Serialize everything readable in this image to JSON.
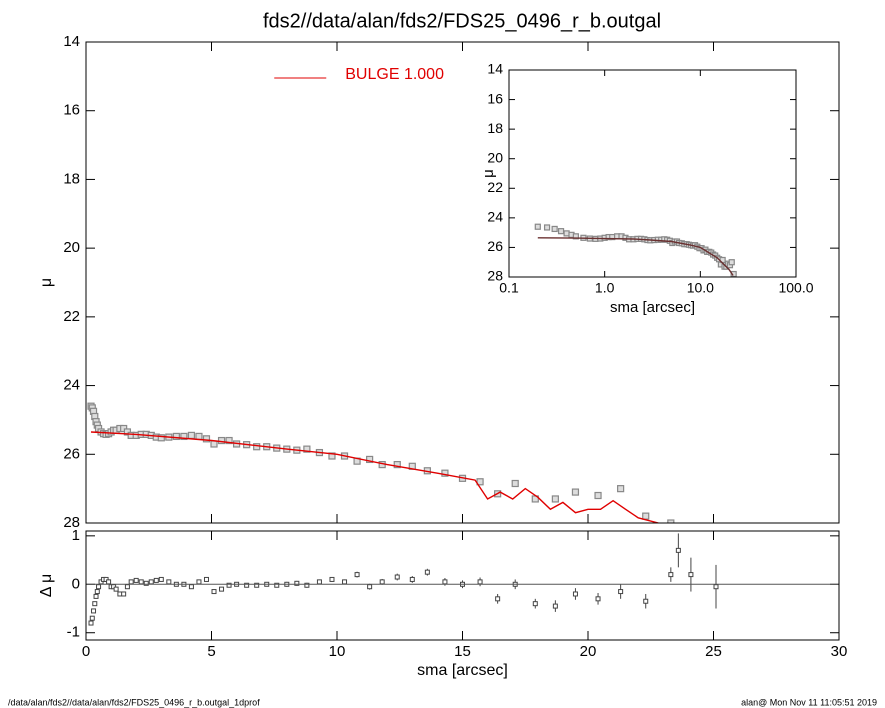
{
  "chart_data": [
    {
      "type": "scatter",
      "title": "fds2//data/alan/fds2/FDS25_0496_r_b.outgal",
      "y_label": "μ",
      "xlim": [
        0,
        30
      ],
      "ylim": [
        28,
        14
      ],
      "yticks": [
        14,
        16,
        18,
        20,
        22,
        24,
        26,
        28
      ],
      "legend": "top-center",
      "series": [
        {
          "color": "#888888",
          "style": "square",
          "x": [
            0.2,
            0.25,
            0.3,
            0.35,
            0.4,
            0.45,
            0.5,
            0.6,
            0.7,
            0.8,
            0.9,
            1.0,
            1.1,
            1.2,
            1.35,
            1.5,
            1.65,
            1.8,
            2.0,
            2.2,
            2.4,
            2.6,
            2.8,
            3.0,
            3.3,
            3.6,
            3.9,
            4.2,
            4.5,
            4.8,
            5.1,
            5.4,
            5.7,
            6.0,
            6.4,
            6.8,
            7.2,
            7.6,
            8.0,
            8.4,
            8.8,
            9.3,
            9.8,
            10.3,
            10.8,
            11.3,
            11.8,
            12.4,
            13.0,
            13.6,
            14.3,
            15.0,
            15.7,
            16.4,
            17.1,
            17.9,
            18.7,
            19.5,
            20.4,
            21.3,
            22.3,
            23.3
          ],
          "values": [
            24.6,
            24.65,
            24.75,
            24.9,
            25.05,
            25.15,
            25.25,
            25.35,
            25.4,
            25.42,
            25.4,
            25.35,
            25.3,
            25.3,
            25.25,
            25.25,
            25.35,
            25.45,
            25.45,
            25.42,
            25.42,
            25.45,
            25.5,
            25.52,
            25.5,
            25.48,
            25.48,
            25.45,
            25.48,
            25.55,
            25.7,
            25.6,
            25.6,
            25.7,
            25.72,
            25.78,
            25.78,
            25.82,
            25.85,
            25.88,
            25.85,
            25.95,
            26.05,
            26.05,
            26.2,
            26.15,
            26.3,
            26.3,
            26.35,
            26.48,
            26.55,
            26.7,
            26.8,
            27.15,
            26.85,
            27.3,
            27.3,
            27.1,
            27.2,
            27.0,
            27.8,
            28.0
          ]
        },
        {
          "name": "BULGE  1.000",
          "color": "#e00000",
          "style": "line",
          "x": [
            0.2,
            2,
            5,
            8,
            10,
            12,
            14,
            15.5,
            16,
            16.5,
            17,
            17.5,
            18,
            18.5,
            19,
            19.5,
            20,
            20.5,
            21,
            21.5,
            22,
            22.8
          ],
          "values": [
            25.35,
            25.42,
            25.6,
            25.85,
            26.0,
            26.3,
            26.55,
            26.75,
            27.3,
            27.1,
            27.3,
            27.0,
            27.25,
            27.6,
            27.4,
            27.7,
            27.6,
            27.6,
            27.35,
            27.6,
            27.85,
            28.0
          ]
        }
      ]
    },
    {
      "type": "errorbar",
      "x_label": "sma [arcsec]",
      "y_label": "Δ μ",
      "xlim": [
        0,
        30
      ],
      "xticks": [
        0,
        5,
        10,
        15,
        20,
        25,
        30
      ],
      "ylim": [
        -1.15,
        1.1
      ],
      "yticks": [
        -1,
        0,
        1
      ],
      "series": [
        {
          "color": "#444444",
          "x": [
            0.2,
            0.25,
            0.3,
            0.35,
            0.4,
            0.45,
            0.5,
            0.6,
            0.7,
            0.8,
            0.9,
            1.0,
            1.1,
            1.2,
            1.35,
            1.5,
            1.65,
            1.8,
            2.0,
            2.2,
            2.4,
            2.6,
            2.8,
            3.0,
            3.3,
            3.6,
            3.9,
            4.2,
            4.5,
            4.8,
            5.1,
            5.4,
            5.7,
            6.0,
            6.4,
            6.8,
            7.2,
            7.6,
            8.0,
            8.4,
            8.8,
            9.3,
            9.8,
            10.3,
            10.8,
            11.3,
            11.8,
            12.4,
            13.0,
            13.6,
            14.3,
            15.0,
            15.7,
            16.4,
            17.1,
            17.9,
            18.7,
            19.5,
            20.4,
            21.3,
            22.3,
            23.3,
            23.6,
            24.1,
            25.1
          ],
          "values": [
            -0.8,
            -0.7,
            -0.55,
            -0.4,
            -0.25,
            -0.15,
            -0.05,
            0.05,
            0.1,
            0.1,
            0.05,
            -0.05,
            -0.05,
            -0.1,
            -0.2,
            -0.2,
            -0.05,
            0.05,
            0.08,
            0.05,
            0.02,
            0.05,
            0.08,
            0.1,
            0.05,
            0.0,
            0.0,
            -0.05,
            0.05,
            0.1,
            -0.15,
            -0.1,
            -0.02,
            0.0,
            -0.02,
            -0.02,
            0.0,
            -0.02,
            0.0,
            0.02,
            -0.02,
            0.05,
            0.1,
            0.05,
            0.2,
            -0.05,
            0.05,
            0.15,
            0.1,
            0.25,
            0.05,
            0.0,
            0.05,
            -0.3,
            0.0,
            -0.4,
            -0.45,
            -0.2,
            -0.3,
            -0.15,
            -0.35,
            0.2,
            0.7,
            0.2,
            -0.05
          ],
          "errors": [
            0.03,
            0.03,
            0.03,
            0.03,
            0.03,
            0.03,
            0.03,
            0.03,
            0.03,
            0.03,
            0.03,
            0.03,
            0.03,
            0.03,
            0.03,
            0.03,
            0.03,
            0.03,
            0.03,
            0.03,
            0.03,
            0.03,
            0.03,
            0.03,
            0.03,
            0.03,
            0.03,
            0.03,
            0.03,
            0.03,
            0.04,
            0.04,
            0.04,
            0.04,
            0.04,
            0.04,
            0.04,
            0.04,
            0.05,
            0.05,
            0.05,
            0.05,
            0.05,
            0.05,
            0.06,
            0.06,
            0.06,
            0.07,
            0.07,
            0.07,
            0.08,
            0.08,
            0.09,
            0.1,
            0.1,
            0.1,
            0.12,
            0.12,
            0.12,
            0.15,
            0.15,
            0.15,
            0.35,
            0.35,
            0.45
          ]
        }
      ]
    },
    {
      "type": "scatter",
      "x_label": "sma [arcsec]",
      "y_label": "μ",
      "xlog": true,
      "xlim": [
        0.1,
        100
      ],
      "xticks": [
        0.1,
        {
          "value": 1,
          "label": "1.0"
        },
        {
          "value": 10,
          "label": "10.0"
        },
        {
          "value": 100,
          "label": "100.0"
        }
      ],
      "ylim": [
        28,
        14
      ],
      "yticks": [
        14,
        16,
        18,
        20,
        22,
        24,
        26,
        28
      ],
      "series": [
        {
          "color": "#888888",
          "style": "square",
          "x": [
            0.2,
            0.25,
            0.3,
            0.35,
            0.4,
            0.45,
            0.5,
            0.6,
            0.7,
            0.8,
            0.9,
            1.0,
            1.1,
            1.2,
            1.35,
            1.5,
            1.65,
            1.8,
            2.0,
            2.2,
            2.4,
            2.6,
            2.8,
            3.0,
            3.3,
            3.6,
            3.9,
            4.2,
            4.5,
            4.8,
            5.1,
            5.4,
            5.7,
            6.0,
            6.4,
            6.8,
            7.2,
            7.6,
            8.0,
            8.4,
            8.8,
            9.3,
            9.8,
            10.3,
            10.8,
            11.3,
            11.8,
            12.4,
            13.0,
            13.6,
            14.3,
            15.0,
            15.7,
            16.4,
            17.1,
            17.9,
            18.7,
            19.5,
            20.4,
            21.3,
            22.3
          ],
          "values": [
            24.6,
            24.65,
            24.75,
            24.9,
            25.05,
            25.15,
            25.25,
            25.35,
            25.4,
            25.42,
            25.4,
            25.35,
            25.3,
            25.3,
            25.25,
            25.25,
            25.35,
            25.45,
            25.45,
            25.42,
            25.42,
            25.45,
            25.5,
            25.52,
            25.5,
            25.48,
            25.48,
            25.45,
            25.48,
            25.55,
            25.7,
            25.6,
            25.6,
            25.7,
            25.72,
            25.78,
            25.78,
            25.82,
            25.85,
            25.88,
            25.85,
            25.95,
            26.05,
            26.05,
            26.2,
            26.15,
            26.3,
            26.3,
            26.35,
            26.48,
            26.55,
            26.7,
            26.8,
            27.15,
            26.85,
            27.3,
            27.3,
            27.1,
            27.2,
            27.0,
            27.8
          ]
        },
        {
          "color": "#6a3030",
          "style": "line",
          "x": [
            0.2,
            0.5,
            1,
            2,
            3,
            5,
            8,
            10,
            15,
            20,
            22
          ],
          "values": [
            25.35,
            25.37,
            25.4,
            25.43,
            25.5,
            25.6,
            25.85,
            26.0,
            26.7,
            27.5,
            27.9
          ]
        }
      ]
    }
  ],
  "footer": {
    "left": "/data/alan/fds2//data/alan/fds2/FDS25_0496_r_b.outgal_1dprof",
    "right": "alan@  Mon Nov 11 11:05:51 2019"
  }
}
